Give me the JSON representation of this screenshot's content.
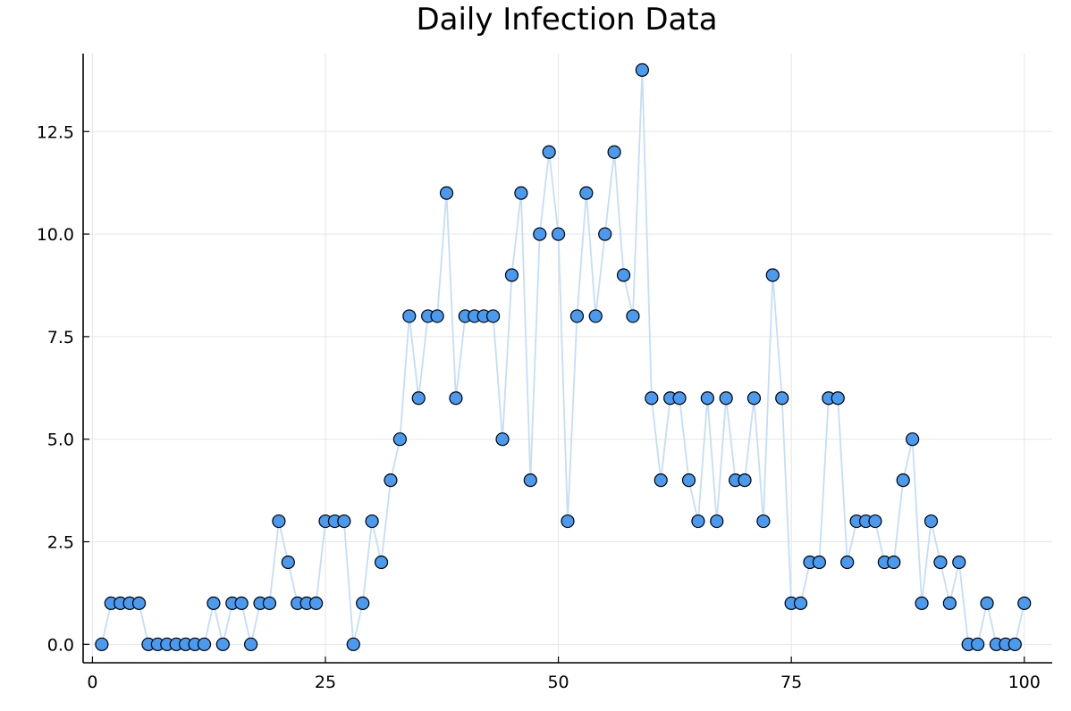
{
  "chart_data": {
    "type": "scatter",
    "title": "Daily Infection Data",
    "xlabel": "",
    "ylabel": "",
    "xlim": [
      -1,
      103
    ],
    "ylim": [
      -0.45,
      14.4
    ],
    "xticks": [
      0,
      25,
      50,
      75,
      100
    ],
    "xtick_labels": [
      "0",
      "25",
      "50",
      "75",
      "100"
    ],
    "yticks": [
      0,
      2.5,
      5,
      7.5,
      10,
      12.5
    ],
    "ytick_labels": [
      "0.0",
      "2.5",
      "5.0",
      "7.5",
      "10.0",
      "12.5"
    ],
    "grid": true,
    "legend": "none",
    "colors": {
      "marker": "#4a9af0",
      "line": "#c5def5"
    },
    "series": [
      {
        "x": [
          1,
          2,
          3,
          4,
          5,
          6,
          7,
          8,
          9,
          10,
          11,
          12,
          13,
          14,
          15,
          16,
          17,
          18,
          19,
          20,
          21,
          22,
          23,
          24,
          25,
          26,
          27,
          28,
          29,
          30,
          31,
          32,
          33,
          34,
          35,
          36,
          37,
          38,
          39,
          40,
          41,
          42,
          43,
          44,
          45,
          46,
          47,
          48,
          49,
          50,
          51,
          52,
          53,
          54,
          55,
          56,
          57,
          58,
          59,
          60,
          61,
          62,
          63,
          64,
          65,
          66,
          67,
          68,
          69,
          70,
          71,
          72,
          73,
          74,
          75,
          76,
          77,
          78,
          79,
          80,
          81,
          82,
          83,
          84,
          85,
          86,
          87,
          88,
          89,
          90,
          91,
          92,
          93,
          94,
          95,
          96,
          97,
          98,
          99,
          100
        ],
        "values": [
          0,
          1,
          1,
          1,
          1,
          0,
          0,
          0,
          0,
          0,
          0,
          0,
          1,
          0,
          1,
          1,
          0,
          1,
          1,
          3,
          2,
          1,
          1,
          1,
          3,
          3,
          3,
          0,
          1,
          3,
          2,
          4,
          5,
          8,
          6,
          8,
          8,
          11,
          6,
          8,
          8,
          8,
          8,
          5,
          9,
          11,
          4,
          10,
          12,
          10,
          3,
          8,
          11,
          8,
          10,
          12,
          9,
          8,
          14,
          6,
          4,
          6,
          6,
          4,
          3,
          6,
          3,
          6,
          4,
          4,
          6,
          3,
          9,
          6,
          1,
          1,
          2,
          2,
          6,
          6,
          2,
          3,
          3,
          3,
          2,
          2,
          4,
          5,
          1,
          3,
          2,
          1,
          2,
          0,
          0,
          1,
          0,
          0,
          0,
          1
        ]
      }
    ]
  }
}
